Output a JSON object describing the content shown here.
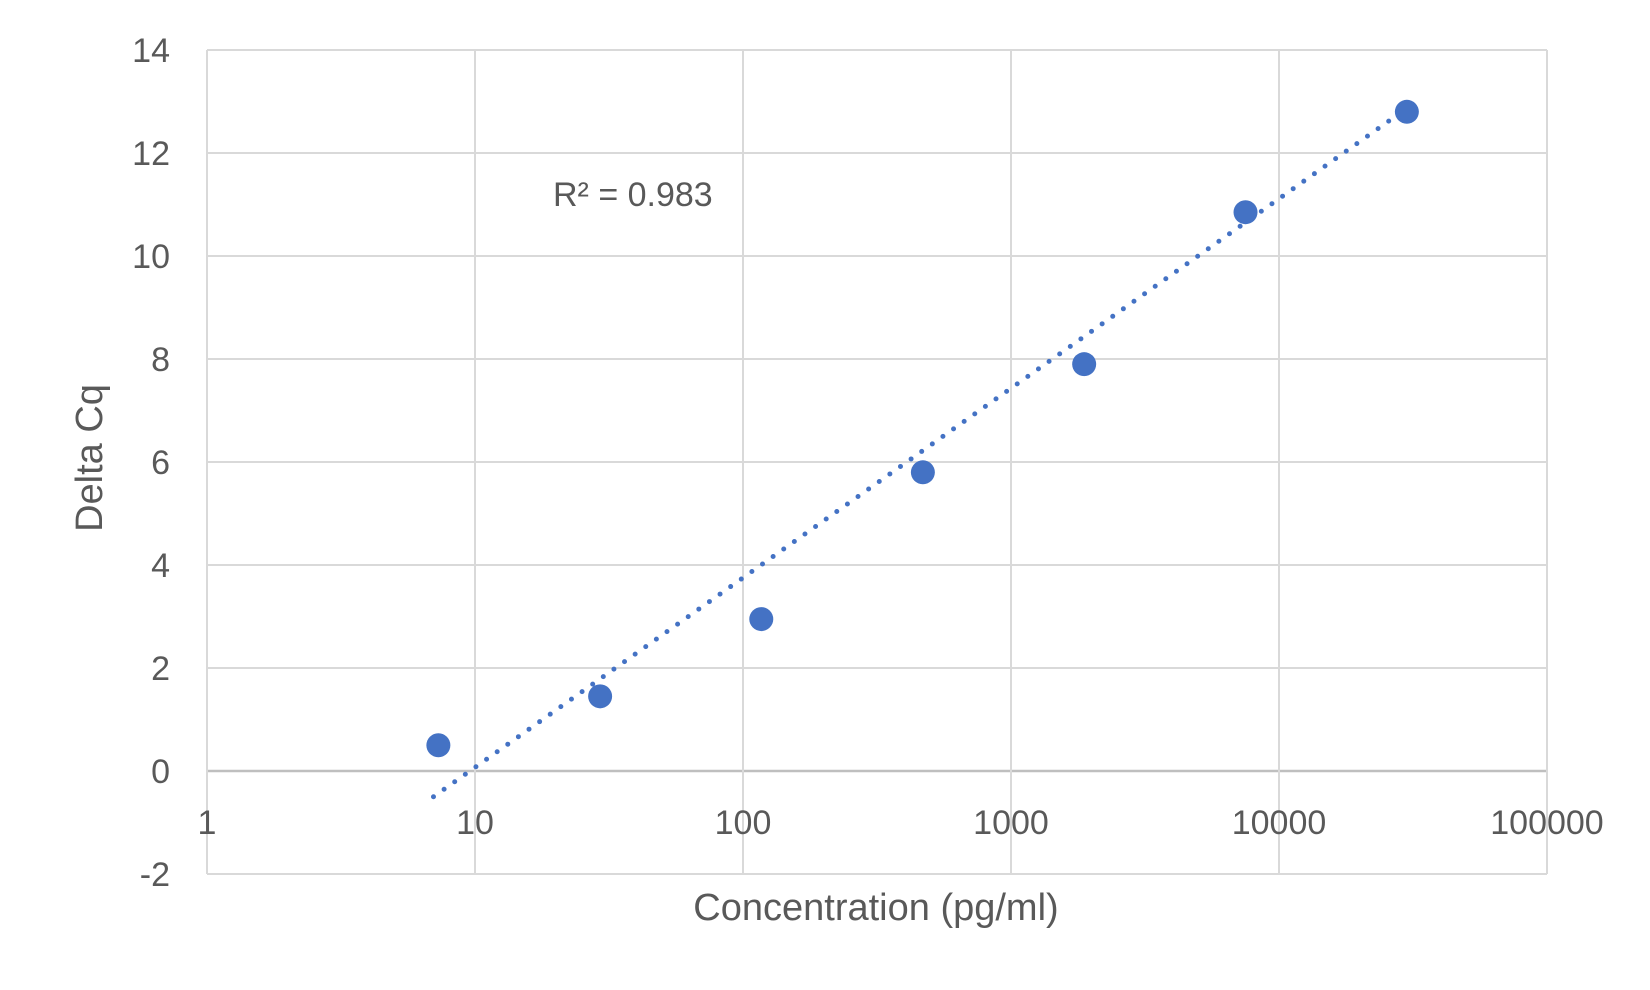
{
  "chart_data": {
    "type": "scatter",
    "xlabel": "Concentration (pg/ml)",
    "ylabel": "Delta Cq",
    "x_scale": "log",
    "xlim": [
      1,
      100000
    ],
    "ylim": [
      -2,
      14
    ],
    "x_ticks": [
      "1",
      "10",
      "100",
      "1000",
      "10000",
      "100000"
    ],
    "y_ticks": [
      "-2",
      "0",
      "2",
      "4",
      "6",
      "8",
      "10",
      "12",
      "14"
    ],
    "grid": true,
    "series": [
      {
        "x": [
          7.3,
          29.3,
          117,
          469,
          1875,
          7500,
          30000
        ],
        "y": [
          0.5,
          1.45,
          2.95,
          5.8,
          7.9,
          10.85,
          12.8
        ],
        "color": "#4472C4",
        "marker": "circle"
      }
    ],
    "trendline": {
      "type": "logarithmic",
      "style": "dotted",
      "color": "#4472C4",
      "x_range": [
        7.0,
        27000
      ],
      "y_range": [
        -0.5,
        12.7
      ]
    },
    "annotations": [
      "R² = 0.983"
    ]
  }
}
